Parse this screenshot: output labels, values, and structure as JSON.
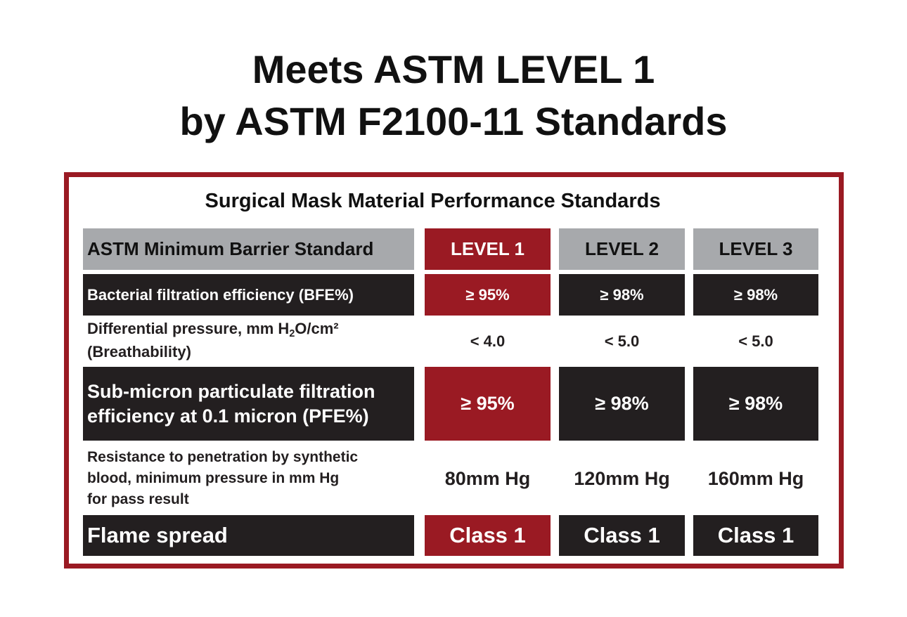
{
  "headline": {
    "line1": "Meets ASTM LEVEL 1",
    "line2": "by ASTM F2100-11 Standards"
  },
  "table": {
    "title": "Surgical Mask Material Performance Standards",
    "header": {
      "label": "ASTM Minimum Barrier Standard",
      "levels": [
        "LEVEL 1",
        "LEVEL 2",
        "LEVEL 3"
      ]
    },
    "rows": [
      {
        "label_lines": [
          "Bacterial filtration efficiency (BFE%)"
        ],
        "values": [
          "≥ 95%",
          "≥ 98%",
          "≥ 98%"
        ]
      },
      {
        "label_lines": [
          "Differential pressure, mm H",
          "2",
          "O/cm²",
          "(Breathability)"
        ],
        "values": [
          "< 4.0",
          "< 5.0",
          "< 5.0"
        ]
      },
      {
        "label_lines": [
          "Sub-micron particulate filtration",
          "efficiency at 0.1 micron (PFE%)"
        ],
        "values": [
          "≥ 95%",
          "≥ 98%",
          "≥ 98%"
        ]
      },
      {
        "label_lines": [
          "Resistance to penetration by synthetic",
          "blood, minimum pressure in mm Hg",
          "for pass result"
        ],
        "values": [
          "80mm Hg",
          "120mm Hg",
          "160mm Hg"
        ]
      },
      {
        "label_lines": [
          "Flame spread"
        ],
        "values": [
          "Class 1",
          "Class 1",
          "Class 1"
        ]
      }
    ]
  },
  "colors": {
    "accent_red": "#9a1a23",
    "dark": "#231f20",
    "header_gray": "#a7a9ac"
  }
}
